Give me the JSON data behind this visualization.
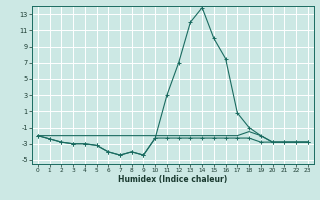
{
  "xlabel": "Humidex (Indice chaleur)",
  "bg_color": "#cce8e4",
  "grid_color": "#ffffff",
  "line_color": "#1a6b60",
  "xlim": [
    -0.5,
    23.5
  ],
  "ylim": [
    -5.5,
    14.0
  ],
  "xticks": [
    0,
    1,
    2,
    3,
    4,
    5,
    6,
    7,
    8,
    9,
    10,
    11,
    12,
    13,
    14,
    15,
    16,
    17,
    18,
    19,
    20,
    21,
    22,
    23
  ],
  "yticks": [
    -5,
    -3,
    -1,
    1,
    3,
    5,
    7,
    9,
    11,
    13
  ],
  "line1_x": [
    0,
    1,
    2,
    3,
    4,
    5,
    6,
    7,
    8,
    9,
    10,
    11,
    12,
    13,
    14,
    15,
    16,
    17,
    18,
    19,
    20,
    21,
    22,
    23
  ],
  "line1_y": [
    -2.0,
    -2.4,
    -2.8,
    -3.0,
    -3.0,
    -3.2,
    -4.0,
    -4.4,
    -4.0,
    -4.4,
    -2.3,
    -2.3,
    -2.3,
    -2.3,
    -2.3,
    -2.3,
    -2.3,
    -2.3,
    -2.3,
    -2.8,
    -2.8,
    -2.8,
    -2.8,
    -2.8
  ],
  "line2_x": [
    0,
    1,
    2,
    3,
    4,
    5,
    6,
    7,
    8,
    9,
    10,
    11,
    12,
    13,
    14,
    15,
    16,
    17,
    18,
    19,
    20,
    21,
    22,
    23
  ],
  "line2_y": [
    -2.0,
    -2.4,
    -2.8,
    -3.0,
    -3.0,
    -3.2,
    -4.0,
    -4.4,
    -4.0,
    -4.4,
    -2.3,
    3.0,
    7.0,
    12.0,
    13.8,
    10.0,
    7.5,
    0.8,
    -1.0,
    -2.0,
    -2.8,
    -2.8,
    -2.8,
    -2.8
  ],
  "line3_x": [
    0,
    1,
    2,
    3,
    4,
    5,
    6,
    7,
    8,
    9,
    10,
    11,
    12,
    13,
    14,
    15,
    16,
    17,
    18,
    19,
    20,
    21,
    22,
    23
  ],
  "line3_y": [
    -2.0,
    -2.0,
    -2.0,
    -2.0,
    -2.0,
    -2.0,
    -2.0,
    -2.0,
    -2.0,
    -2.0,
    -2.0,
    -2.0,
    -2.0,
    -2.0,
    -2.0,
    -2.0,
    -2.0,
    -2.0,
    -1.5,
    -2.0,
    -2.8,
    -2.8,
    -2.8,
    -2.8
  ]
}
